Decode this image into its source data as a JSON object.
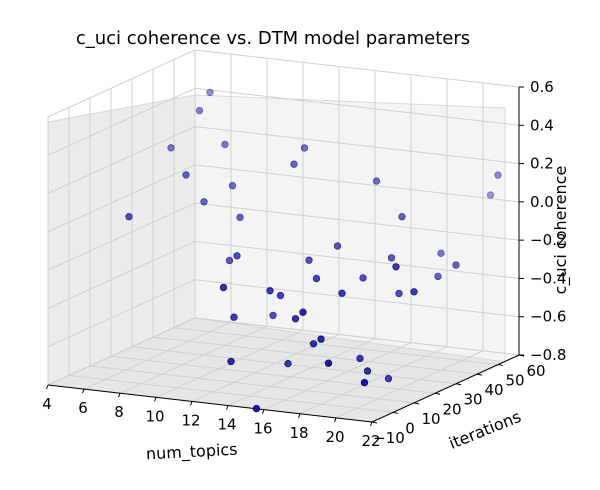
{
  "chart_data": {
    "type": "scatter",
    "title": "c_uci coherence vs. DTM model parameters",
    "xlabel": "num_topics",
    "ylabel": "iterations",
    "zlabel": "c_uci coherence",
    "xlim": [
      4,
      22
    ],
    "ylim": [
      -10,
      60
    ],
    "zlim": [
      -0.8,
      0.6
    ],
    "x_ticks": [
      "4",
      "6",
      "8",
      "10",
      "12",
      "14",
      "16",
      "18",
      "20",
      "22"
    ],
    "y_ticks": [
      "−10",
      "0",
      "10",
      "20",
      "30",
      "40",
      "50",
      "60"
    ],
    "z_ticks": [
      "−0.8",
      "−0.6",
      "−0.4",
      "−0.2",
      "0.0",
      "0.2",
      "0.4",
      "0.6"
    ],
    "grid": true,
    "marker_color": "#0000cc",
    "points": [
      {
        "x": 5,
        "y": 40,
        "z": 0.2
      },
      {
        "x": 6,
        "y": 50,
        "z": 0.45
      },
      {
        "x": 6,
        "y": 45,
        "z": 0.38
      },
      {
        "x": 7,
        "y": 30,
        "z": 0.13
      },
      {
        "x": 5,
        "y": 20,
        "z": -0.06
      },
      {
        "x": 8,
        "y": 40,
        "z": 0.25
      },
      {
        "x": 8,
        "y": 30,
        "z": 0.0
      },
      {
        "x": 9,
        "y": 35,
        "z": 0.07
      },
      {
        "x": 10,
        "y": 30,
        "z": -0.06
      },
      {
        "x": 10,
        "y": 25,
        "z": -0.26
      },
      {
        "x": 11,
        "y": 20,
        "z": -0.2
      },
      {
        "x": 13,
        "y": 35,
        "z": 0.31
      },
      {
        "x": 13,
        "y": 30,
        "z": 0.25
      },
      {
        "x": 12,
        "y": 10,
        "z": -0.46
      },
      {
        "x": 13,
        "y": 20,
        "z": -0.49
      },
      {
        "x": 14,
        "y": 10,
        "z": -0.3
      },
      {
        "x": 13,
        "y": 0,
        "z": -0.63
      },
      {
        "x": 15,
        "y": 10,
        "z": -0.67
      },
      {
        "x": 16,
        "y": 25,
        "z": -0.12
      },
      {
        "x": 17,
        "y": 35,
        "z": 0.18
      },
      {
        "x": 16,
        "y": 15,
        "z": -0.24
      },
      {
        "x": 17,
        "y": 0,
        "z": -0.33
      },
      {
        "x": 18,
        "y": 20,
        "z": -0.24
      },
      {
        "x": 18,
        "y": 10,
        "z": -0.27
      },
      {
        "x": 19,
        "y": 30,
        "z": 0.04
      },
      {
        "x": 18,
        "y": 0,
        "z": -0.46
      },
      {
        "x": 19,
        "y": -5,
        "z": -0.55
      },
      {
        "x": 19,
        "y": 10,
        "z": -0.6
      },
      {
        "x": 20,
        "y": 20,
        "z": -0.3
      },
      {
        "x": 19,
        "y": 25,
        "z": -0.15
      },
      {
        "x": 20,
        "y": 5,
        "z": -0.63
      },
      {
        "x": 20,
        "y": 15,
        "z": -0.72
      },
      {
        "x": 21,
        "y": -5,
        "z": -0.63
      },
      {
        "x": 21,
        "y": 30,
        "z": -0.25
      },
      {
        "x": 21,
        "y": 10,
        "z": -0.1
      },
      {
        "x": 22,
        "y": 50,
        "z": 0.19
      },
      {
        "x": 17,
        "y": 5,
        "z": -0.52
      },
      {
        "x": 16,
        "y": 5,
        "z": -0.4
      },
      {
        "x": 22,
        "y": 30,
        "z": -0.18
      },
      {
        "x": 20,
        "y": 40,
        "z": -0.19
      },
      {
        "x": 15,
        "y": 20,
        "z": -0.18
      },
      {
        "x": 14,
        "y": 15,
        "z": -0.35
      },
      {
        "x": 12,
        "y": 5,
        "z": -0.28
      },
      {
        "x": 15,
        "y": -5,
        "z": -0.83
      },
      {
        "x": 21,
        "y": 55,
        "z": 0.05
      },
      {
        "x": 22,
        "y": 10,
        "z": -0.22
      }
    ]
  }
}
